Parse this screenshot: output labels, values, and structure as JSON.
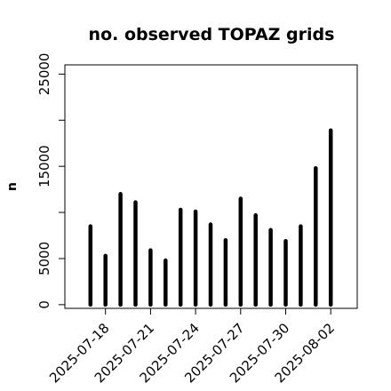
{
  "chart_data": {
    "type": "bar",
    "title": "no. observed TOPAZ grids",
    "xlabel": "",
    "ylabel": "n",
    "ylim": [
      -400,
      26000
    ],
    "yticks": [
      0,
      5000,
      15000,
      25000
    ],
    "minor_yticks": [
      10000,
      20000
    ],
    "x": [
      "2025-07-17",
      "2025-07-18",
      "2025-07-19",
      "2025-07-20",
      "2025-07-21",
      "2025-07-22",
      "2025-07-23",
      "2025-07-24",
      "2025-07-25",
      "2025-07-26",
      "2025-07-27",
      "2025-07-28",
      "2025-07-29",
      "2025-07-30",
      "2025-07-31",
      "2025-08-01",
      "2025-08-02"
    ],
    "values": [
      8500,
      5300,
      12000,
      11100,
      5900,
      4800,
      10300,
      10100,
      8700,
      7000,
      11500,
      9700,
      8100,
      6900,
      8500,
      14800,
      18900
    ],
    "xtick_labels": [
      {
        "date": "2025-07-18",
        "label": "2025-07-18",
        "color": "#000000"
      },
      {
        "date": "2025-07-21",
        "label": "2025-07-21",
        "color": "#000000"
      },
      {
        "date": "2025-07-24",
        "label": "2025-07-24",
        "color": "#228b22"
      },
      {
        "date": "2025-07-27",
        "label": "2025-07-27",
        "color": "#000000"
      },
      {
        "date": "2025-07-30",
        "label": "2025-07-30",
        "color": "#000000"
      },
      {
        "date": "2025-08-02",
        "label": "2025-08-02",
        "color": "#000000"
      }
    ],
    "bar_color": "#000000",
    "grid": false,
    "legend": "none"
  }
}
